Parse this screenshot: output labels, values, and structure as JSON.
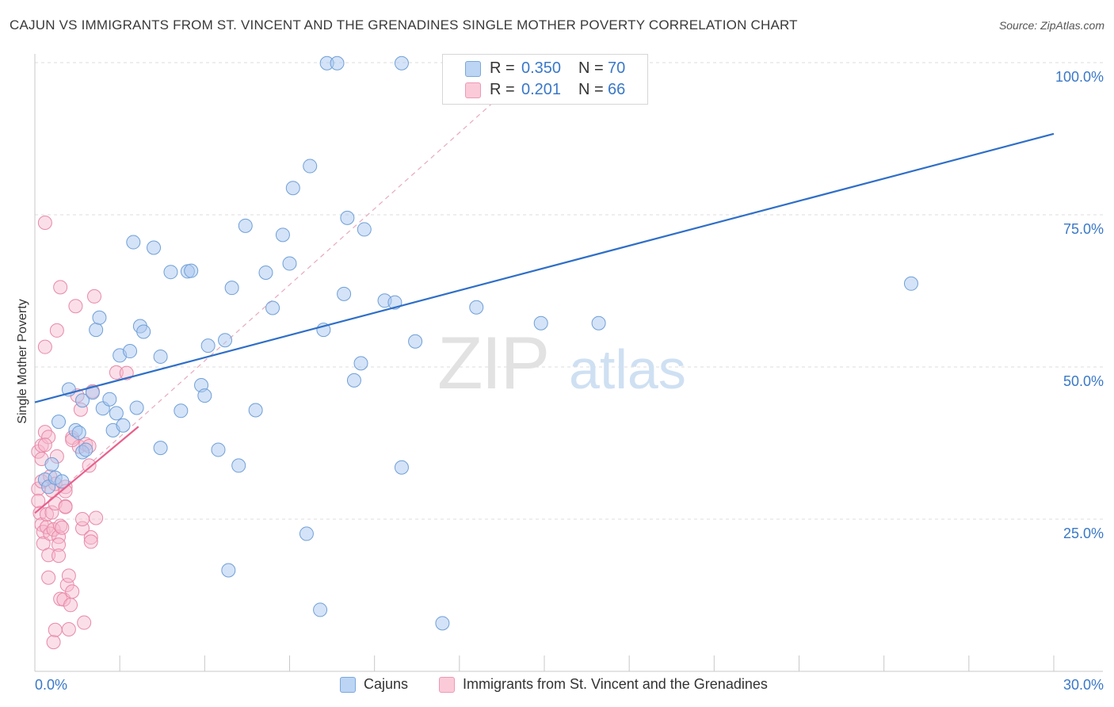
{
  "title": "CAJUN VS IMMIGRANTS FROM ST. VINCENT AND THE GRENADINES SINGLE MOTHER POVERTY CORRELATION CHART",
  "source": "Source: ZipAtlas.com",
  "watermark": {
    "zip": "ZIP",
    "atlas": "atlas"
  },
  "stats": [
    {
      "r_label": "R =",
      "r_value": "0.350",
      "n_label": "N =",
      "n_value": "70"
    },
    {
      "r_label": "R =",
      "r_value": "0.201",
      "n_label": "N =",
      "n_value": "66"
    }
  ],
  "legend": [
    {
      "label": "Cajuns"
    },
    {
      "label": "Immigrants from St. Vincent and the Grenadines"
    }
  ],
  "colors": {
    "cajun_fill": "#a9c8f0",
    "cajun_stroke": "#6f9fd8",
    "cajun_line": "#2f6fc7",
    "svg_fill": "#f7b8cc",
    "svg_stroke": "#e889a8",
    "svg_line": "#e8608c",
    "tick_label": "#3a78c8",
    "grid": "#dcdcdc"
  },
  "chart_data": {
    "type": "scatter",
    "ylabel": "Single Mother Poverty",
    "xlim": [
      0,
      30
    ],
    "ylim": [
      0,
      100
    ],
    "x_tick_labels": [
      {
        "value": 0,
        "label": "0.0%"
      },
      {
        "value": 30,
        "label": "30.0%"
      }
    ],
    "y_tick_labels": [
      {
        "value": 25,
        "label": "25.0%"
      },
      {
        "value": 50,
        "label": "50.0%"
      },
      {
        "value": 75,
        "label": "75.0%"
      },
      {
        "value": 100,
        "label": "100.0%"
      }
    ],
    "series": [
      {
        "name": "Cajuns",
        "trend": {
          "x": [
            0,
            30
          ],
          "y": [
            44.2,
            88.3
          ]
        },
        "points": [
          [
            0.3,
            31.5
          ],
          [
            0.4,
            30.3
          ],
          [
            0.5,
            34.0
          ],
          [
            0.6,
            31.8
          ],
          [
            0.7,
            41.0
          ],
          [
            0.8,
            31.2
          ],
          [
            1.0,
            46.3
          ],
          [
            1.2,
            39.6
          ],
          [
            1.3,
            39.2
          ],
          [
            1.4,
            44.5
          ],
          [
            1.4,
            36.0
          ],
          [
            1.5,
            36.4
          ],
          [
            1.7,
            45.8
          ],
          [
            1.8,
            56.1
          ],
          [
            1.9,
            58.1
          ],
          [
            2.0,
            43.2
          ],
          [
            2.2,
            44.7
          ],
          [
            2.3,
            39.6
          ],
          [
            2.4,
            42.4
          ],
          [
            2.5,
            51.9
          ],
          [
            2.6,
            40.4
          ],
          [
            2.8,
            52.6
          ],
          [
            2.9,
            70.5
          ],
          [
            3.0,
            43.3
          ],
          [
            3.1,
            56.7
          ],
          [
            3.2,
            55.8
          ],
          [
            3.5,
            69.6
          ],
          [
            3.7,
            36.7
          ],
          [
            3.7,
            51.7
          ],
          [
            4.0,
            65.6
          ],
          [
            4.3,
            42.8
          ],
          [
            4.5,
            65.7
          ],
          [
            4.6,
            65.8
          ],
          [
            4.9,
            47.0
          ],
          [
            5.0,
            45.3
          ],
          [
            5.1,
            53.5
          ],
          [
            5.4,
            36.4
          ],
          [
            5.6,
            54.4
          ],
          [
            5.7,
            16.6
          ],
          [
            5.8,
            63.0
          ],
          [
            6.0,
            33.8
          ],
          [
            6.2,
            73.2
          ],
          [
            6.5,
            42.9
          ],
          [
            6.8,
            65.5
          ],
          [
            7.0,
            59.7
          ],
          [
            7.3,
            71.7
          ],
          [
            7.5,
            67.0
          ],
          [
            7.6,
            79.4
          ],
          [
            8.0,
            22.6
          ],
          [
            8.1,
            83.0
          ],
          [
            8.4,
            10.1
          ],
          [
            8.5,
            56.1
          ],
          [
            8.6,
            99.9
          ],
          [
            8.9,
            99.9
          ],
          [
            9.2,
            74.5
          ],
          [
            9.4,
            47.8
          ],
          [
            9.6,
            50.6
          ],
          [
            9.7,
            72.6
          ],
          [
            10.3,
            60.9
          ],
          [
            10.6,
            60.6
          ],
          [
            10.8,
            33.5
          ],
          [
            10.8,
            99.9
          ],
          [
            11.2,
            54.2
          ],
          [
            12.0,
            7.9
          ],
          [
            12.5,
            99.9
          ],
          [
            13.0,
            59.8
          ],
          [
            14.9,
            57.2
          ],
          [
            16.6,
            57.2
          ],
          [
            25.8,
            63.7
          ],
          [
            9.1,
            62.0
          ]
        ]
      },
      {
        "name": "Immigrants from St. Vincent and the Grenadines",
        "trend": {
          "x": [
            0,
            3.05
          ],
          "y": [
            26.0,
            40.2
          ]
        },
        "trend_extended": {
          "x": [
            0,
            14.8
          ],
          "y": [
            26.0,
            100.0
          ]
        },
        "points": [
          [
            0.1,
            36.1
          ],
          [
            0.1,
            30.0
          ],
          [
            0.1,
            28.0
          ],
          [
            0.15,
            26.0
          ],
          [
            0.2,
            31.2
          ],
          [
            0.2,
            34.9
          ],
          [
            0.2,
            24.1
          ],
          [
            0.25,
            22.9
          ],
          [
            0.25,
            21.0
          ],
          [
            0.3,
            39.3
          ],
          [
            0.3,
            73.7
          ],
          [
            0.3,
            53.3
          ],
          [
            0.35,
            23.7
          ],
          [
            0.35,
            25.8
          ],
          [
            0.4,
            19.1
          ],
          [
            0.4,
            15.4
          ],
          [
            0.45,
            32.0
          ],
          [
            0.45,
            22.6
          ],
          [
            0.5,
            29.7
          ],
          [
            0.5,
            26.1
          ],
          [
            0.55,
            23.3
          ],
          [
            0.55,
            4.8
          ],
          [
            0.6,
            27.6
          ],
          [
            0.6,
            6.8
          ],
          [
            0.6,
            30.8
          ],
          [
            0.65,
            56.0
          ],
          [
            0.65,
            35.3
          ],
          [
            0.7,
            22.1
          ],
          [
            0.7,
            20.8
          ],
          [
            0.7,
            19.0
          ],
          [
            0.75,
            63.1
          ],
          [
            0.75,
            11.9
          ],
          [
            0.75,
            23.9
          ],
          [
            0.8,
            23.6
          ],
          [
            0.85,
            11.8
          ],
          [
            0.9,
            30.3
          ],
          [
            0.9,
            29.6
          ],
          [
            0.9,
            27.1
          ],
          [
            0.95,
            14.2
          ],
          [
            1.0,
            6.9
          ],
          [
            1.0,
            15.7
          ],
          [
            1.05,
            10.9
          ],
          [
            1.1,
            13.1
          ],
          [
            1.1,
            38.4
          ],
          [
            1.2,
            60.0
          ],
          [
            1.25,
            45.3
          ],
          [
            1.3,
            36.9
          ],
          [
            1.35,
            43.0
          ],
          [
            1.4,
            23.5
          ],
          [
            1.4,
            25.0
          ],
          [
            1.45,
            8.0
          ],
          [
            1.5,
            37.3
          ],
          [
            1.6,
            37.0
          ],
          [
            1.6,
            33.8
          ],
          [
            1.65,
            22.0
          ],
          [
            1.65,
            21.3
          ],
          [
            1.7,
            46.0
          ],
          [
            1.75,
            61.6
          ],
          [
            1.8,
            25.2
          ],
          [
            2.4,
            49.1
          ],
          [
            2.7,
            49.0
          ],
          [
            0.2,
            37.1
          ],
          [
            0.4,
            38.5
          ],
          [
            0.9,
            27.0
          ],
          [
            1.1,
            38.0
          ],
          [
            0.3,
            37.2
          ]
        ]
      }
    ]
  }
}
